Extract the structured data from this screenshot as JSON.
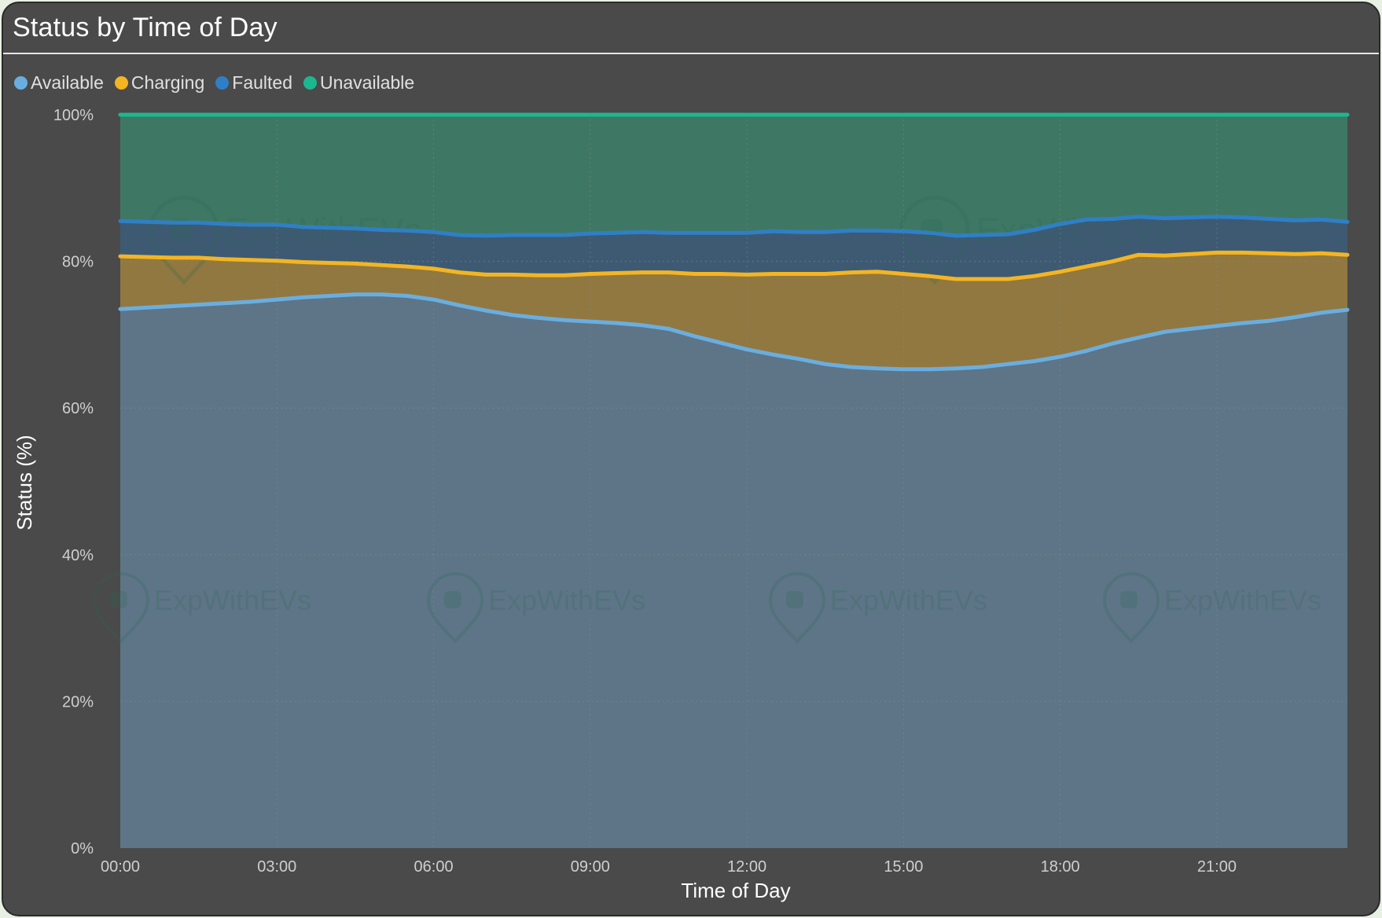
{
  "card": {
    "title": "Status by Time of Day"
  },
  "watermark": {
    "text": "ExpWithEVs"
  },
  "legend": [
    {
      "label": "Available",
      "color": "#6aaee0"
    },
    {
      "label": "Charging",
      "color": "#f4b522"
    },
    {
      "label": "Faulted",
      "color": "#2f7fc6"
    },
    {
      "label": "Unavailable",
      "color": "#1bb890"
    }
  ],
  "chart_data": {
    "type": "area",
    "stacked": true,
    "title": "Status by Time of Day",
    "xlabel": "Time of Day",
    "ylabel": "Status (%)",
    "ylim": [
      0,
      100
    ],
    "y_ticks": [
      "0%",
      "20%",
      "40%",
      "60%",
      "80%",
      "100%"
    ],
    "x_tick_labels": [
      "00:00",
      "03:00",
      "06:00",
      "09:00",
      "12:00",
      "15:00",
      "18:00",
      "21:00"
    ],
    "x_range_hours": [
      0,
      23.5
    ],
    "x_hours": [
      0,
      0.5,
      1,
      1.5,
      2,
      2.5,
      3,
      3.5,
      4,
      4.5,
      5,
      5.5,
      6,
      6.5,
      7,
      7.5,
      8,
      8.5,
      9,
      9.5,
      10,
      10.5,
      11,
      11.5,
      12,
      12.5,
      13,
      13.5,
      14,
      14.5,
      15,
      15.5,
      16,
      16.5,
      17,
      17.5,
      18,
      18.5,
      19,
      19.5,
      20,
      20.5,
      21,
      21.5,
      22,
      22.5,
      23,
      23.5
    ],
    "series": [
      {
        "name": "Available",
        "color": "#6aaee0",
        "fill": "#5e7587",
        "values": [
          73.5,
          73.7,
          73.9,
          74.1,
          74.3,
          74.5,
          74.8,
          75.1,
          75.3,
          75.5,
          75.5,
          75.3,
          74.8,
          74.0,
          73.3,
          72.7,
          72.3,
          72.0,
          71.8,
          71.6,
          71.3,
          70.8,
          69.8,
          68.9,
          68.0,
          67.3,
          66.7,
          66.0,
          65.6,
          65.4,
          65.3,
          65.3,
          65.4,
          65.6,
          66.0,
          66.4,
          67.0,
          67.8,
          68.8,
          69.6,
          70.4,
          70.8,
          71.2,
          71.6,
          71.9,
          72.4,
          73.0,
          73.4
        ]
      },
      {
        "name": "Charging",
        "color": "#f4b522",
        "fill": "#917841",
        "values": [
          7.2,
          6.9,
          6.6,
          6.4,
          6.0,
          5.7,
          5.3,
          4.8,
          4.5,
          4.2,
          4.0,
          4.0,
          4.2,
          4.5,
          4.9,
          5.5,
          5.8,
          6.1,
          6.5,
          6.8,
          7.2,
          7.7,
          8.5,
          9.4,
          10.2,
          11.0,
          11.6,
          12.3,
          12.9,
          13.2,
          13.0,
          12.7,
          12.2,
          12.0,
          11.6,
          11.6,
          11.6,
          11.5,
          11.2,
          11.3,
          10.4,
          10.2,
          10.0,
          9.6,
          9.2,
          8.6,
          8.1,
          7.5
        ]
      },
      {
        "name": "Faulted",
        "color": "#2f7fc6",
        "fill": "#3e5a73",
        "values": [
          4.8,
          4.8,
          4.8,
          4.8,
          4.8,
          4.8,
          4.9,
          4.8,
          4.8,
          4.8,
          4.8,
          4.9,
          5.0,
          5.1,
          5.3,
          5.4,
          5.5,
          5.5,
          5.5,
          5.5,
          5.5,
          5.4,
          5.6,
          5.6,
          5.7,
          5.8,
          5.7,
          5.7,
          5.7,
          5.6,
          5.8,
          5.9,
          5.9,
          6.0,
          6.1,
          6.3,
          6.5,
          6.4,
          5.8,
          5.2,
          5.1,
          5.0,
          4.9,
          4.8,
          4.7,
          4.6,
          4.6,
          4.5
        ]
      },
      {
        "name": "Unavailable",
        "color": "#1bb890",
        "fill": "#3e7865",
        "values": [
          14.5,
          14.6,
          14.7,
          14.7,
          14.9,
          15.0,
          15.0,
          15.3,
          15.4,
          15.5,
          15.7,
          15.8,
          16.0,
          16.4,
          16.5,
          16.4,
          16.4,
          16.4,
          16.2,
          16.1,
          16.0,
          16.1,
          16.1,
          16.1,
          16.1,
          15.9,
          16.0,
          16.0,
          15.8,
          15.8,
          15.9,
          16.1,
          16.5,
          16.4,
          16.3,
          15.7,
          14.9,
          14.3,
          14.2,
          13.9,
          14.1,
          14.0,
          13.9,
          14.0,
          14.2,
          14.4,
          14.3,
          14.6
        ]
      }
    ],
    "grid": true,
    "legend_position": "top-left"
  }
}
